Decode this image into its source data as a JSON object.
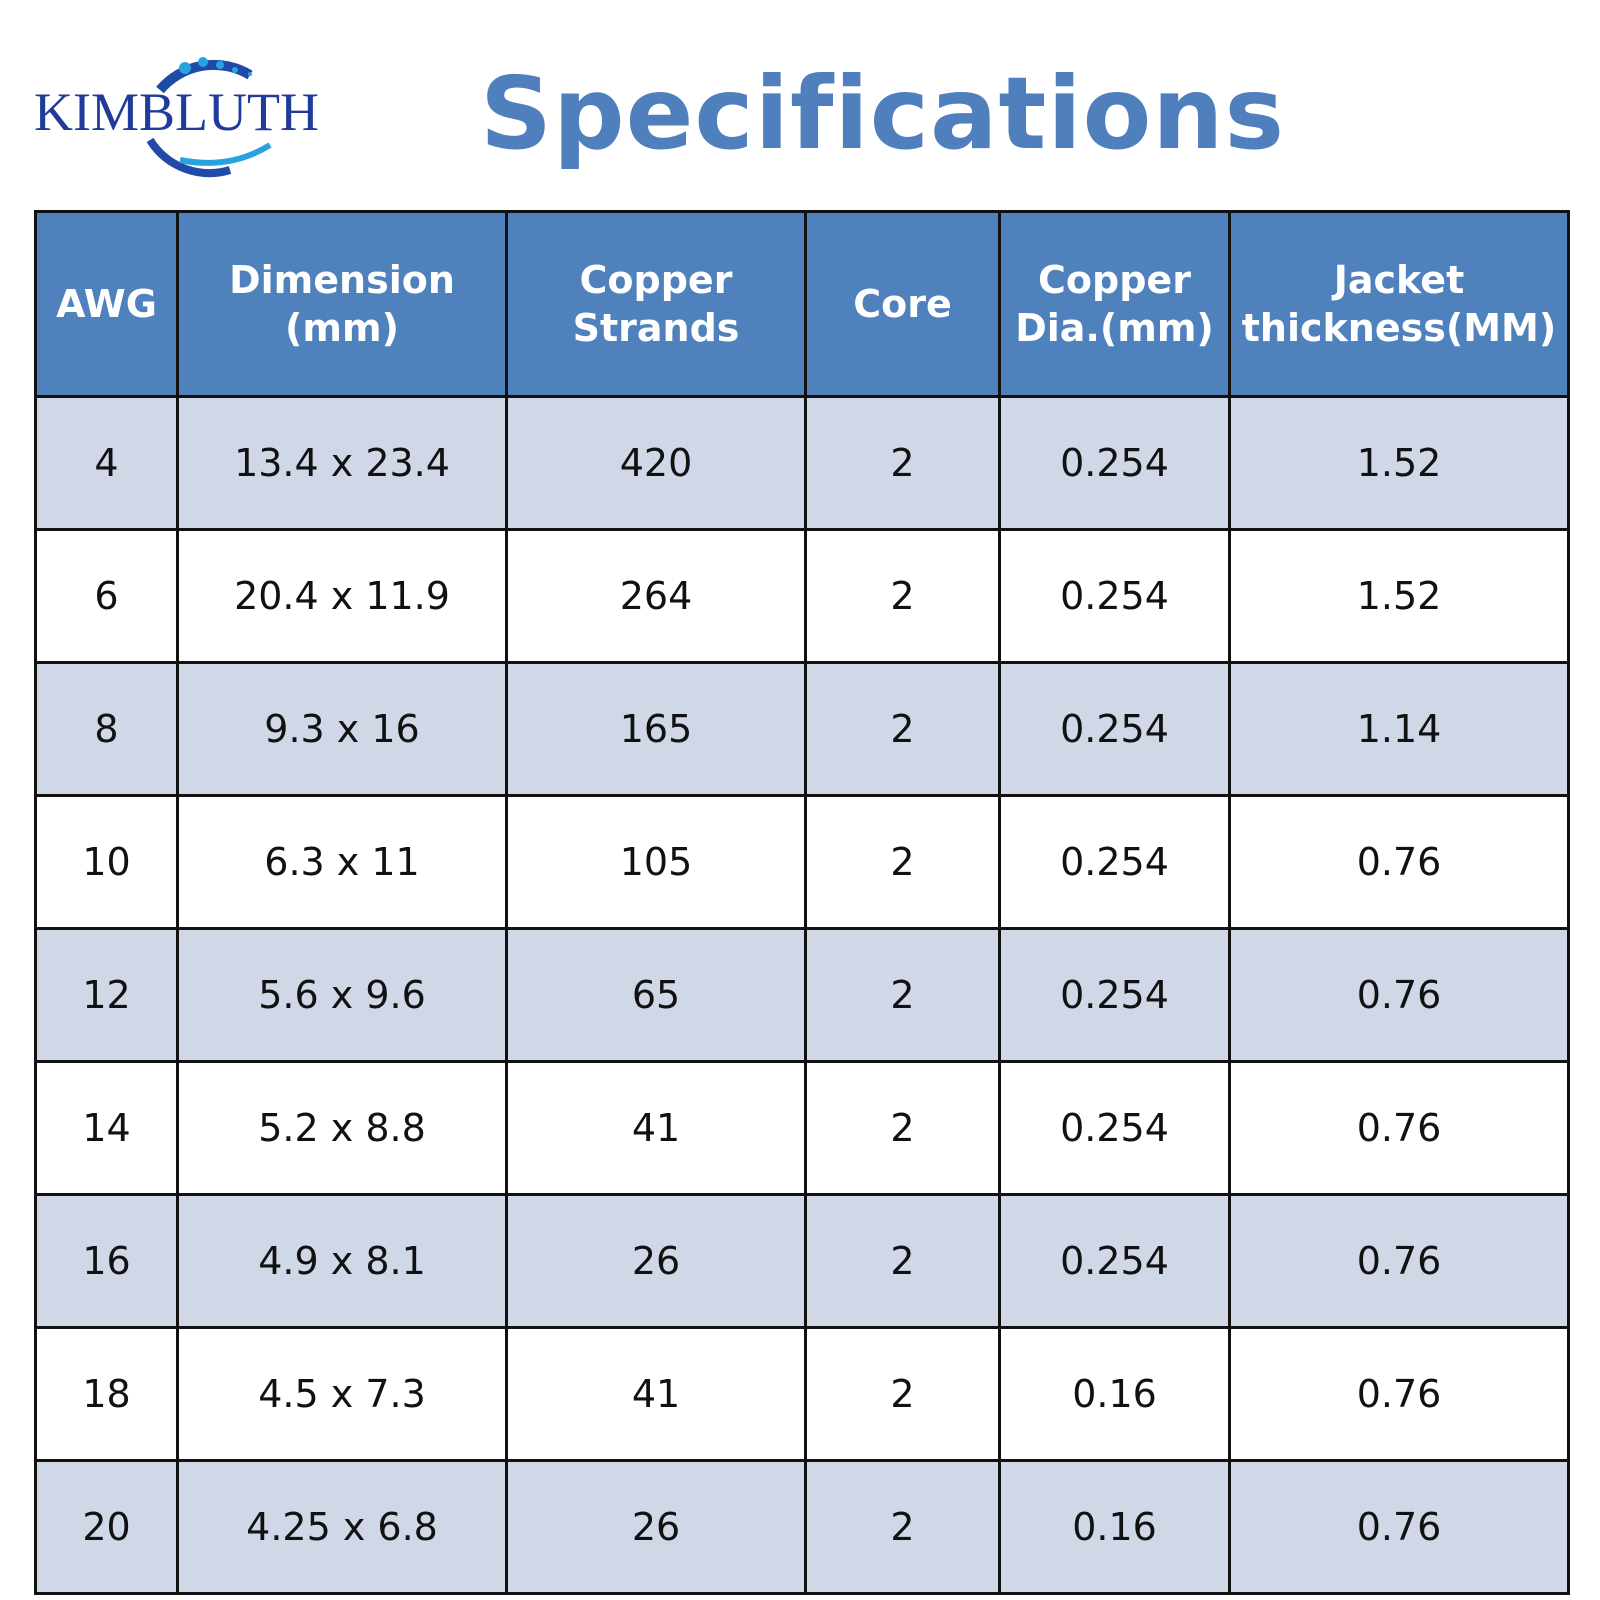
{
  "logo": {
    "text": "KIMBLUTH"
  },
  "header": {
    "title": "Specifications"
  },
  "table": {
    "columns": [
      [
        "AWG"
      ],
      [
        "Dimension",
        "(mm)"
      ],
      [
        "Copper",
        "Strands"
      ],
      [
        "Core"
      ],
      [
        "Copper",
        "Dia.(mm)"
      ],
      [
        "Jacket",
        "thickness(MM)"
      ]
    ],
    "rows": [
      [
        "4",
        "13.4 x 23.4",
        "420",
        "2",
        "0.254",
        "1.52"
      ],
      [
        "6",
        "20.4 x 11.9",
        "264",
        "2",
        "0.254",
        "1.52"
      ],
      [
        "8",
        "9.3 x 16",
        "165",
        "2",
        "0.254",
        "1.14"
      ],
      [
        "10",
        "6.3 x 11",
        "105",
        "2",
        "0.254",
        "0.76"
      ],
      [
        "12",
        "5.6 x 9.6",
        "65",
        "2",
        "0.254",
        "0.76"
      ],
      [
        "14",
        "5.2 x 8.8",
        "41",
        "2",
        "0.254",
        "0.76"
      ],
      [
        "16",
        "4.9 x 8.1",
        "26",
        "2",
        "0.254",
        "0.76"
      ],
      [
        "18",
        "4.5 x 7.3",
        "41",
        "2",
        "0.16",
        "0.76"
      ],
      [
        "20",
        "4.25 x 6.8",
        "26",
        "2",
        "0.16",
        "0.76"
      ]
    ]
  }
}
